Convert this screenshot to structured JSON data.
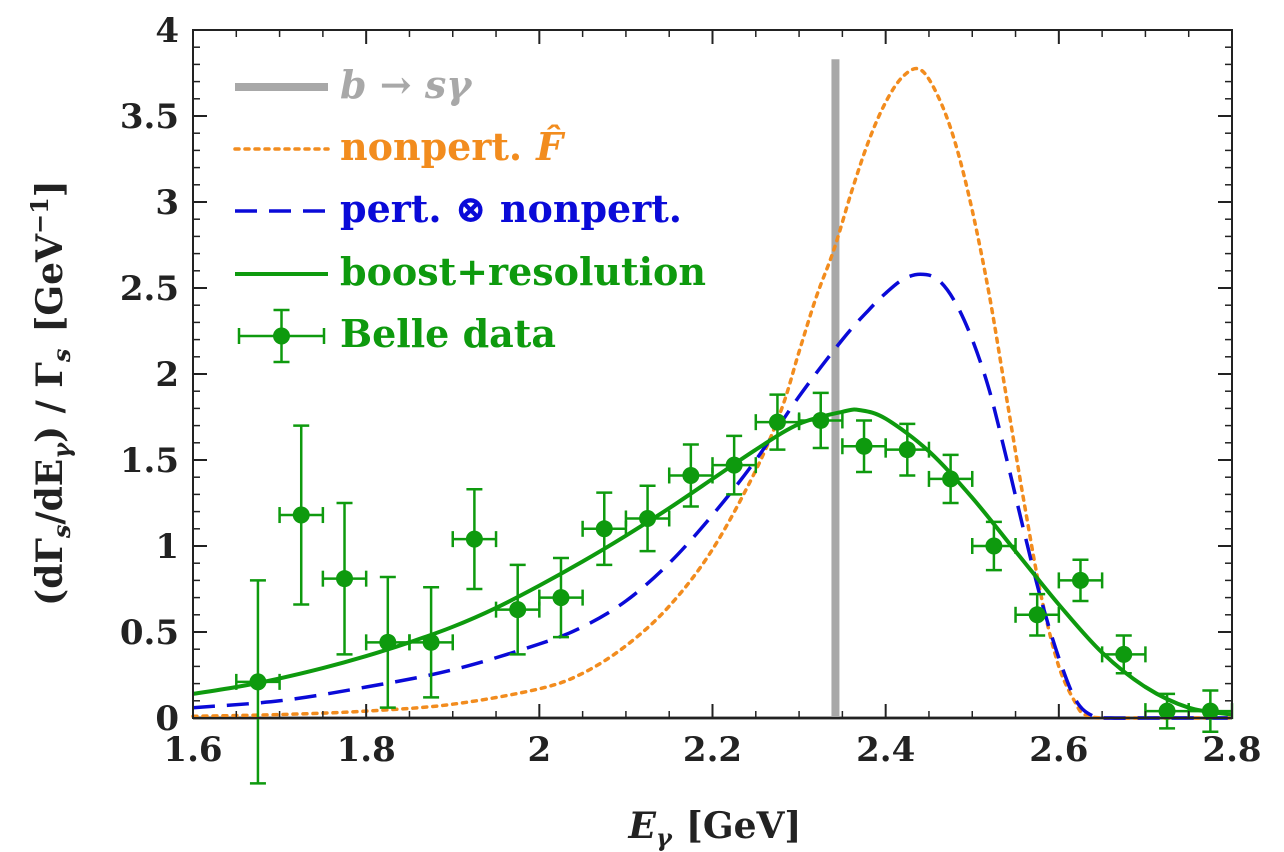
{
  "chart_data": {
    "type": "line",
    "xlabel": {
      "var": "E",
      "sub": "γ",
      "unit": "[GeV]"
    },
    "ylabel": {
      "text": "(dΓ",
      "sub_s": "s",
      "mid": "/dE",
      "sub_g": "γ",
      "tail": ") / Γ",
      "sub_s2": "s",
      "unit": "[GeV",
      "exp": "−1",
      "close": "]"
    },
    "xlim": [
      1.6,
      2.8
    ],
    "ylim": [
      0,
      4
    ],
    "x_ticks": [
      "1.6",
      "1.8",
      "2",
      "2.2",
      "2.4",
      "2.6",
      "2.8"
    ],
    "y_ticks": [
      "0",
      "0.5",
      "1",
      "1.5",
      "2",
      "2.5",
      "3",
      "3.5",
      "4"
    ],
    "legend_position": "top-left",
    "legend": [
      {
        "key": "bsg",
        "label": "b → sγ",
        "color": "#a8a8a8",
        "style": "solid-thick"
      },
      {
        "key": "nonpert",
        "label": "nonpert.",
        "math": "F̂",
        "color": "#f28c1e",
        "style": "dotted"
      },
      {
        "key": "pert",
        "label": "pert. ⊗ nonpert.",
        "color": "#0a0ad8",
        "style": "dashed"
      },
      {
        "key": "boost",
        "label": "boost+resolution",
        "color": "#0e9a0e",
        "style": "solid"
      },
      {
        "key": "belle",
        "label": "Belle data",
        "color": "#0e9a0e",
        "style": "points"
      }
    ],
    "series": [
      {
        "name": "b → sγ",
        "type": "vline",
        "x": 2.342,
        "y_range": [
          0,
          3.83
        ],
        "baseline": 0
      },
      {
        "name": "nonpert. F̂",
        "type": "line",
        "x": [
          1.6,
          1.7,
          1.8,
          1.9,
          2.0,
          2.05,
          2.1,
          2.15,
          2.2,
          2.25,
          2.28,
          2.3,
          2.32,
          2.34,
          2.36,
          2.38,
          2.4,
          2.42,
          2.44,
          2.46,
          2.48,
          2.5,
          2.52,
          2.54,
          2.56,
          2.58,
          2.6,
          2.62,
          2.63,
          2.65,
          2.7,
          2.8
        ],
        "y": [
          0.01,
          0.02,
          0.04,
          0.08,
          0.17,
          0.26,
          0.42,
          0.65,
          0.98,
          1.44,
          1.8,
          2.13,
          2.45,
          2.72,
          3.05,
          3.35,
          3.58,
          3.73,
          3.77,
          3.62,
          3.35,
          2.95,
          2.45,
          1.85,
          1.25,
          0.7,
          0.3,
          0.08,
          0.02,
          0.0,
          0.0,
          0.0
        ]
      },
      {
        "name": "pert. ⊗ nonpert.",
        "type": "line",
        "x": [
          1.6,
          1.7,
          1.8,
          1.9,
          2.0,
          2.05,
          2.1,
          2.15,
          2.2,
          2.25,
          2.3,
          2.35,
          2.38,
          2.4,
          2.42,
          2.44,
          2.46,
          2.48,
          2.5,
          2.52,
          2.54,
          2.56,
          2.58,
          2.6,
          2.62,
          2.64,
          2.66,
          2.7,
          2.8
        ],
        "y": [
          0.06,
          0.1,
          0.18,
          0.28,
          0.43,
          0.53,
          0.68,
          0.9,
          1.18,
          1.5,
          1.87,
          2.2,
          2.37,
          2.47,
          2.55,
          2.58,
          2.55,
          2.42,
          2.2,
          1.9,
          1.5,
          1.08,
          0.68,
          0.35,
          0.1,
          0.01,
          0.0,
          0.0,
          0.0
        ]
      },
      {
        "name": "boost+resolution",
        "type": "line",
        "x": [
          1.6,
          1.65,
          1.7,
          1.75,
          1.8,
          1.85,
          1.9,
          1.95,
          2.0,
          2.05,
          2.1,
          2.15,
          2.2,
          2.25,
          2.3,
          2.35,
          2.37,
          2.4,
          2.45,
          2.5,
          2.55,
          2.6,
          2.65,
          2.7,
          2.75,
          2.8
        ],
        "y": [
          0.14,
          0.18,
          0.23,
          0.29,
          0.36,
          0.44,
          0.53,
          0.64,
          0.77,
          0.91,
          1.06,
          1.22,
          1.39,
          1.56,
          1.71,
          1.78,
          1.79,
          1.74,
          1.55,
          1.28,
          0.97,
          0.66,
          0.38,
          0.18,
          0.06,
          0.02
        ]
      },
      {
        "name": "Belle data",
        "type": "points",
        "x": [
          1.675,
          1.725,
          1.775,
          1.825,
          1.875,
          1.925,
          1.975,
          2.025,
          2.075,
          2.125,
          2.175,
          2.225,
          2.275,
          2.325,
          2.375,
          2.425,
          2.475,
          2.525,
          2.575,
          2.625,
          2.675,
          2.725,
          2.775
        ],
        "y": [
          0.21,
          1.18,
          0.81,
          0.44,
          0.44,
          1.04,
          0.63,
          0.7,
          1.1,
          1.16,
          1.41,
          1.47,
          1.72,
          1.73,
          1.58,
          1.56,
          1.39,
          1.0,
          0.6,
          0.8,
          0.37,
          0.04,
          0.04
        ],
        "yerr": [
          0.59,
          0.52,
          0.44,
          0.38,
          0.32,
          0.29,
          0.26,
          0.23,
          0.21,
          0.19,
          0.18,
          0.17,
          0.16,
          0.16,
          0.15,
          0.15,
          0.14,
          0.14,
          0.12,
          0.12,
          0.11,
          0.1,
          0.12
        ],
        "xerr": 0.025
      }
    ]
  }
}
